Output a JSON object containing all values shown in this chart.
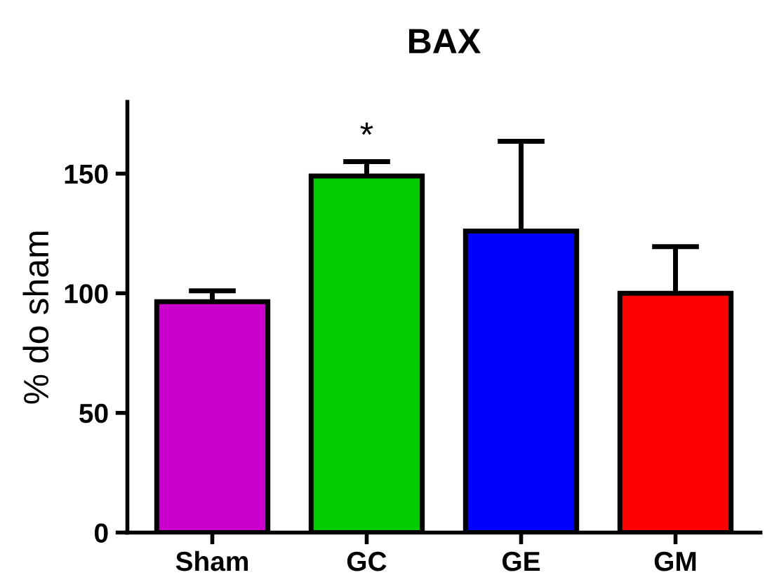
{
  "chart_data": {
    "type": "bar",
    "title": "BAX",
    "ylabel": "% do sham",
    "categories": [
      "Sham",
      "GC",
      "GE",
      "GM"
    ],
    "values": [
      96.5,
      149,
      126,
      100
    ],
    "colors": [
      "#cc00cc",
      "#00cc00",
      "#0000ff",
      "#ff0000"
    ],
    "errors": [
      4.5,
      6,
      37.5,
      19.5
    ],
    "ylim": [
      0,
      180
    ],
    "yticks": [
      0,
      50,
      100,
      150
    ],
    "annotations": [
      "*"
    ],
    "grid": false,
    "legend": false
  }
}
